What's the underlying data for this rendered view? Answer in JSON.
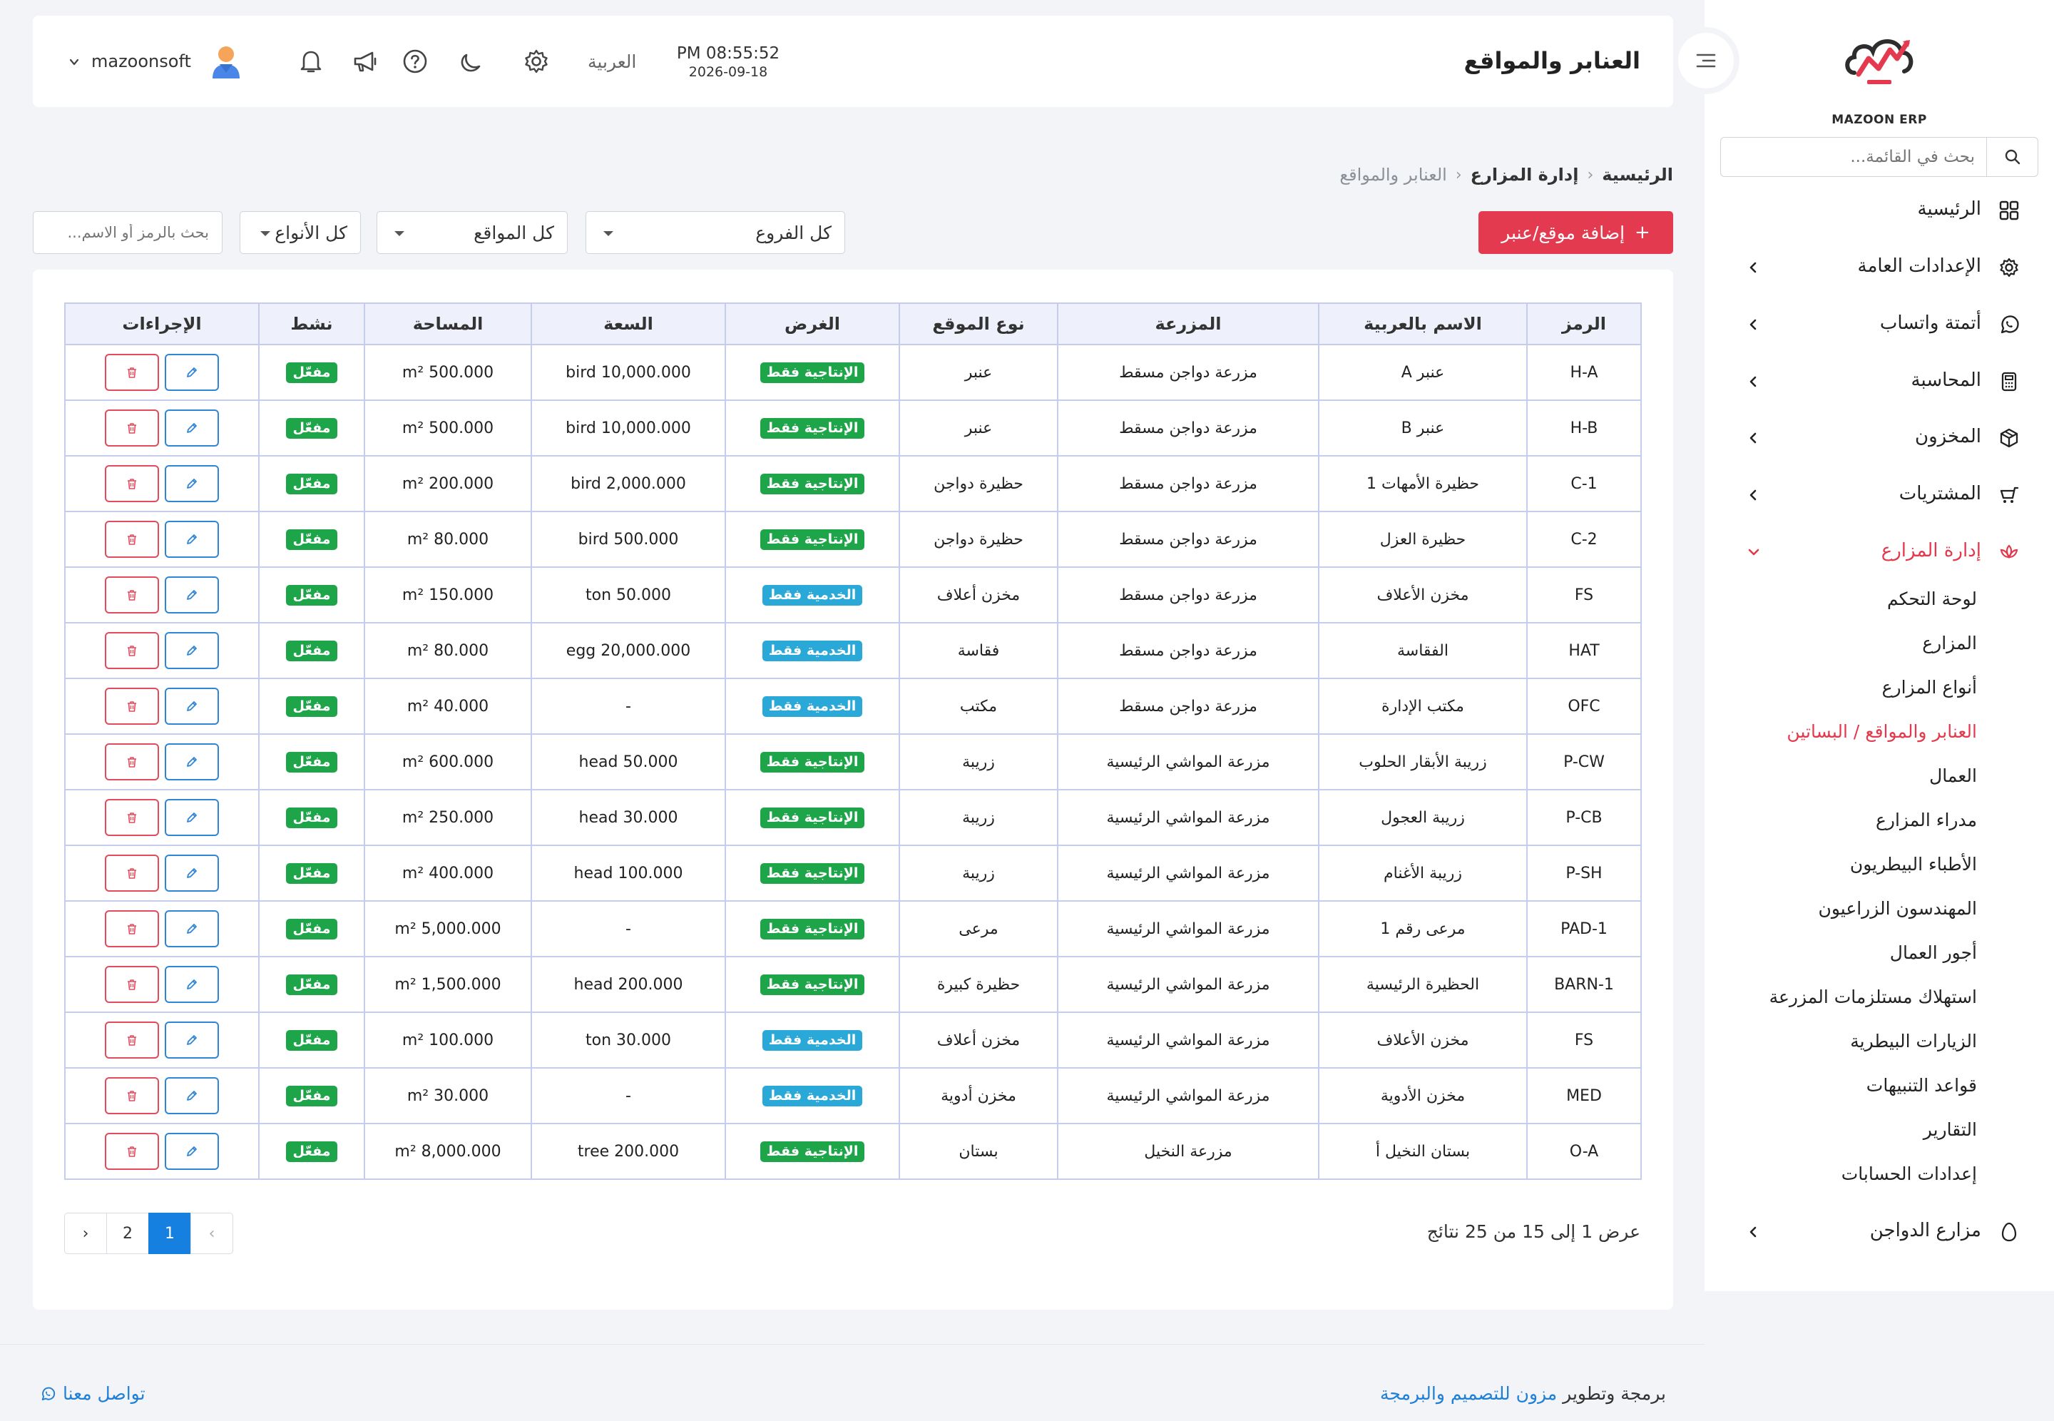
{
  "app": {
    "logo_text": "MAZOON ERP",
    "accent_color": "#e43a4f",
    "primary_color": "#1580e0"
  },
  "sidebar": {
    "search_placeholder": "بحث في القائمة...",
    "items": [
      {
        "label": "الرئيسية",
        "icon": "dashboard-grid-icon",
        "has_children": false
      },
      {
        "label": "الإعدادات العامة",
        "icon": "gear-icon",
        "has_children": true
      },
      {
        "label": "أتمتة واتساب",
        "icon": "whatsapp-icon",
        "has_children": true
      },
      {
        "label": "المحاسبة",
        "icon": "calculator-icon",
        "has_children": true
      },
      {
        "label": "المخزون",
        "icon": "box-icon",
        "has_children": true
      },
      {
        "label": "المشتريات",
        "icon": "cart-icon",
        "has_children": true
      },
      {
        "label": "إدارة المزارع",
        "icon": "lotus-icon",
        "has_children": true,
        "expanded": true
      },
      {
        "label": "مزارع الدواجن",
        "icon": "egg-icon",
        "has_children": true
      }
    ],
    "farm_sub_items": [
      "لوحة التحكم",
      "المزارع",
      "أنواع المزارع",
      "العنابر والمواقع / البساتين",
      "العمال",
      "مدراء المزارع",
      "الأطباء البيطريون",
      "المهندسون الزراعيون",
      "أجور العمال",
      "استهلاك مستلزمات المزرعة",
      "الزيارات البيطرية",
      "قواعد التنبيهات",
      "التقارير",
      "إعدادات الحسابات"
    ],
    "active_sub_index": 3
  },
  "topbar": {
    "title": "العنابر والمواقع",
    "time": "PM 08:55:52",
    "date": "2026-09-18",
    "language": "العربية",
    "user": "mazoonsoft"
  },
  "breadcrumb": {
    "home": "الرئيسية",
    "section": "إدارة المزارع",
    "current": "العنابر والمواقع"
  },
  "filters": {
    "add_button": "إضافة موقع/عنبر",
    "branches": "كل الفروع",
    "locations": "كل المواقع",
    "types": "كل الأنواع",
    "search_placeholder": "بحث بالرمز أو الاسم..."
  },
  "table": {
    "headers": [
      "الرمز",
      "الاسم بالعربية",
      "المزرعة",
      "نوع الموقع",
      "الغرض",
      "السعة",
      "المساحة",
      "نشط",
      "الإجراءات"
    ],
    "rows": [
      {
        "code": "H-A",
        "name": "عنبر A",
        "farm": "مزرعة دواجن مسقط",
        "type": "عنبر",
        "purpose": "الإنتاجية فقط",
        "purpose_kind": "prod",
        "capacity": "bird 10,000.000",
        "area": "m² 500.000",
        "active": "مفعّل"
      },
      {
        "code": "H-B",
        "name": "عنبر B",
        "farm": "مزرعة دواجن مسقط",
        "type": "عنبر",
        "purpose": "الإنتاجية فقط",
        "purpose_kind": "prod",
        "capacity": "bird 10,000.000",
        "area": "m² 500.000",
        "active": "مفعّل"
      },
      {
        "code": "C-1",
        "name": "حظيرة الأمهات 1",
        "farm": "مزرعة دواجن مسقط",
        "type": "حظيرة دواجن",
        "purpose": "الإنتاجية فقط",
        "purpose_kind": "prod",
        "capacity": "bird 2,000.000",
        "area": "m² 200.000",
        "active": "مفعّل"
      },
      {
        "code": "C-2",
        "name": "حظيرة العزل",
        "farm": "مزرعة دواجن مسقط",
        "type": "حظيرة دواجن",
        "purpose": "الإنتاجية فقط",
        "purpose_kind": "prod",
        "capacity": "bird 500.000",
        "area": "m² 80.000",
        "active": "مفعّل"
      },
      {
        "code": "FS",
        "name": "مخزن الأعلاف",
        "farm": "مزرعة دواجن مسقط",
        "type": "مخزن أعلاف",
        "purpose": "الخدمية فقط",
        "purpose_kind": "serv",
        "capacity": "ton 50.000",
        "area": "m² 150.000",
        "active": "مفعّل"
      },
      {
        "code": "HAT",
        "name": "الفقاسة",
        "farm": "مزرعة دواجن مسقط",
        "type": "فقاسة",
        "purpose": "الخدمية فقط",
        "purpose_kind": "serv",
        "capacity": "egg 20,000.000",
        "area": "m² 80.000",
        "active": "مفعّل"
      },
      {
        "code": "OFC",
        "name": "مكتب الإدارة",
        "farm": "مزرعة دواجن مسقط",
        "type": "مكتب",
        "purpose": "الخدمية فقط",
        "purpose_kind": "serv",
        "capacity": "-",
        "area": "m² 40.000",
        "active": "مفعّل"
      },
      {
        "code": "P-CW",
        "name": "زريبة الأبقار الحلوب",
        "farm": "مزرعة المواشي الرئيسية",
        "type": "زريبة",
        "purpose": "الإنتاجية فقط",
        "purpose_kind": "prod",
        "capacity": "head 50.000",
        "area": "m² 600.000",
        "active": "مفعّل"
      },
      {
        "code": "P-CB",
        "name": "زريبة العجول",
        "farm": "مزرعة المواشي الرئيسية",
        "type": "زريبة",
        "purpose": "الإنتاجية فقط",
        "purpose_kind": "prod",
        "capacity": "head 30.000",
        "area": "m² 250.000",
        "active": "مفعّل"
      },
      {
        "code": "P-SH",
        "name": "زريبة الأغنام",
        "farm": "مزرعة المواشي الرئيسية",
        "type": "زريبة",
        "purpose": "الإنتاجية فقط",
        "purpose_kind": "prod",
        "capacity": "head 100.000",
        "area": "m² 400.000",
        "active": "مفعّل"
      },
      {
        "code": "PAD-1",
        "name": "مرعى رقم 1",
        "farm": "مزرعة المواشي الرئيسية",
        "type": "مرعى",
        "purpose": "الإنتاجية فقط",
        "purpose_kind": "prod",
        "capacity": "-",
        "area": "m² 5,000.000",
        "active": "مفعّل"
      },
      {
        "code": "BARN-1",
        "name": "الحظيرة الرئيسية",
        "farm": "مزرعة المواشي الرئيسية",
        "type": "حظيرة كبيرة",
        "purpose": "الإنتاجية فقط",
        "purpose_kind": "prod",
        "capacity": "head 200.000",
        "area": "m² 1,500.000",
        "active": "مفعّل"
      },
      {
        "code": "FS",
        "name": "مخزن الأعلاف",
        "farm": "مزرعة المواشي الرئيسية",
        "type": "مخزن أعلاف",
        "purpose": "الخدمية فقط",
        "purpose_kind": "serv",
        "capacity": "ton 30.000",
        "area": "m² 100.000",
        "active": "مفعّل"
      },
      {
        "code": "MED",
        "name": "مخزن الأدوية",
        "farm": "مزرعة المواشي الرئيسية",
        "type": "مخزن أدوية",
        "purpose": "الخدمية فقط",
        "purpose_kind": "serv",
        "capacity": "-",
        "area": "m² 30.000",
        "active": "مفعّل"
      },
      {
        "code": "O-A",
        "name": "بستان النخيل أ",
        "farm": "مزرعة النخيل",
        "type": "بستان",
        "purpose": "الإنتاجية فقط",
        "purpose_kind": "prod",
        "capacity": "tree 200.000",
        "area": "m² 8,000.000",
        "active": "مفعّل"
      }
    ]
  },
  "pagination": {
    "summary": "عرض 1 إلى 15 من 25 نتائج",
    "prev": "‹",
    "next": "›",
    "pages": [
      "1",
      "2"
    ],
    "current": "1"
  },
  "footer": {
    "credit_prefix": "برمجة وتطوير",
    "credit_brand": "مزون للتصميم والبرمجة",
    "contact": "تواصل معنا"
  }
}
